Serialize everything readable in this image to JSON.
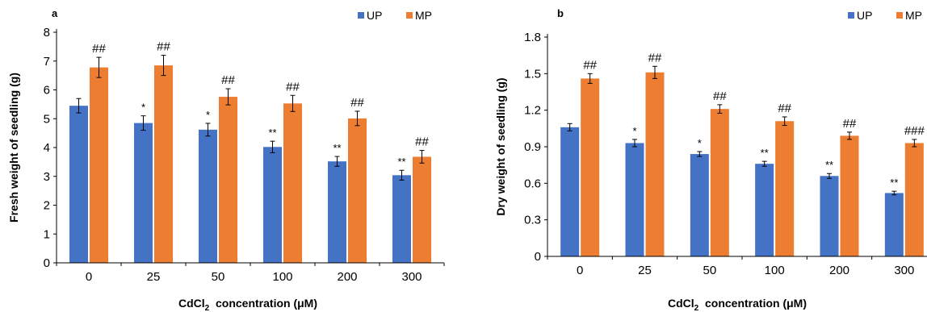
{
  "chart_data": [
    {
      "type": "bar",
      "panel_label": "a",
      "categories": [
        "0",
        "25",
        "50",
        "100",
        "200",
        "300"
      ],
      "series": [
        {
          "name": "UP",
          "color": "#4472C4",
          "values": [
            5.45,
            4.85,
            4.62,
            4.02,
            3.52,
            3.04
          ],
          "errors": [
            0.25,
            0.25,
            0.22,
            0.2,
            0.17,
            0.17
          ],
          "significance": [
            "",
            "*",
            "*",
            "**",
            "**",
            "**"
          ]
        },
        {
          "name": "MP",
          "color": "#ED7D31",
          "values": [
            6.78,
            6.85,
            5.76,
            5.53,
            5.01,
            3.68
          ],
          "errors": [
            0.35,
            0.35,
            0.28,
            0.28,
            0.25,
            0.22
          ],
          "significance": [
            "##",
            "##",
            "##",
            "##",
            "##",
            "##"
          ]
        }
      ],
      "ylabel": "Fresh weight of seedling (g)",
      "xlabel_prefix": "CdCl",
      "xlabel_subscript": "2",
      "xlabel_suffix": "  concentration (μM)",
      "ylim": [
        0,
        8
      ],
      "yticks": [
        "0",
        "1",
        "2",
        "3",
        "4",
        "5",
        "6",
        "7",
        "8"
      ],
      "legend_position": "top-right",
      "grid": false
    },
    {
      "type": "bar",
      "panel_label": "b",
      "categories": [
        "0",
        "25",
        "50",
        "100",
        "200",
        "300"
      ],
      "series": [
        {
          "name": "UP",
          "color": "#4472C4",
          "values": [
            1.06,
            0.93,
            0.84,
            0.76,
            0.66,
            0.52
          ],
          "errors": [
            0.03,
            0.03,
            0.02,
            0.02,
            0.02,
            0.015
          ],
          "significance": [
            "",
            "*",
            "*",
            "**",
            "**",
            "**"
          ]
        },
        {
          "name": "MP",
          "color": "#ED7D31",
          "values": [
            1.46,
            1.51,
            1.21,
            1.11,
            0.99,
            0.93
          ],
          "errors": [
            0.04,
            0.05,
            0.035,
            0.035,
            0.03,
            0.03
          ],
          "significance": [
            "##",
            "##",
            "##",
            "##",
            "##",
            "###"
          ]
        }
      ],
      "ylabel": "Dry  weight of seedling (g)",
      "xlabel_prefix": "CdCl",
      "xlabel_subscript": "2",
      "xlabel_suffix": "  concentration (μM)",
      "ylim": [
        0,
        1.8
      ],
      "yticks": [
        "0",
        "0.3",
        "0.6",
        "0.9",
        "1.2",
        "1.5",
        "1.8"
      ],
      "legend_position": "top-right",
      "grid": false
    }
  ]
}
